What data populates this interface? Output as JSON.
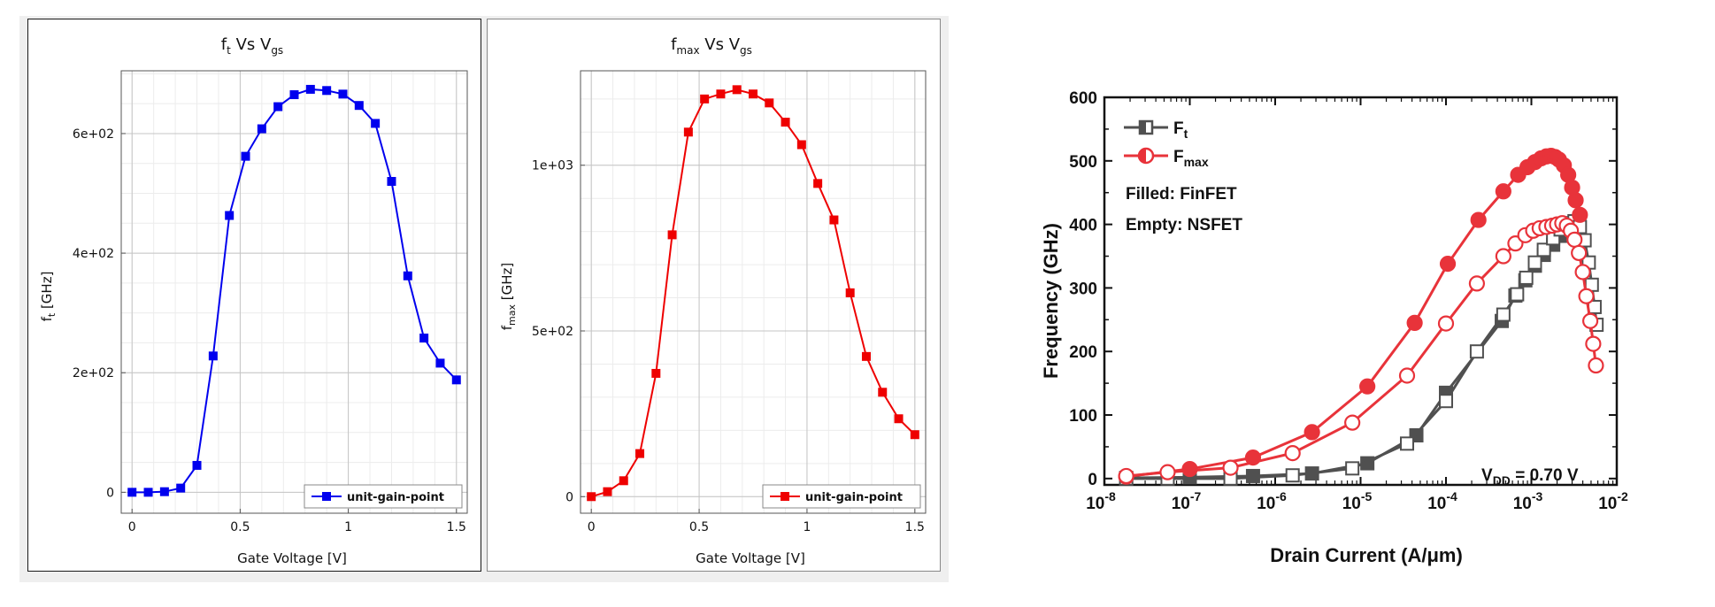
{
  "chart_data": [
    {
      "type": "line",
      "title": "f",
      "title_sub": "t",
      "title_rest": " Vs V",
      "title_sub2": "gs",
      "xlabel": "Gate Voltage [V]",
      "ylabel": "f",
      "ylabel_sub": "t",
      "ylabel_rest": " [GHz]",
      "xlim": [
        -0.05,
        1.55
      ],
      "ylim": [
        -35,
        705
      ],
      "x_ticks": [
        0,
        0.5,
        1,
        1.5
      ],
      "x_tick_labels": [
        "0",
        "0.5",
        "1",
        "1.5"
      ],
      "y_ticks": [
        0,
        200,
        400,
        600
      ],
      "y_tick_labels": [
        "0",
        "2e+02",
        "4e+02",
        "6e+02"
      ],
      "grid": true,
      "legend_position": "bottom-right",
      "series": [
        {
          "name": "unit-gain-point",
          "color": "#0000ee",
          "marker": "square",
          "x": [
            0,
            0.075,
            0.15,
            0.225,
            0.3,
            0.375,
            0.45,
            0.525,
            0.6,
            0.675,
            0.75,
            0.825,
            0.9,
            0.975,
            1.05,
            1.125,
            1.2,
            1.275,
            1.35,
            1.425,
            1.5
          ],
          "y": [
            0,
            0,
            1,
            7,
            45,
            228,
            463,
            562,
            608,
            645,
            665,
            674,
            672,
            666,
            647,
            617,
            520,
            362,
            258,
            216,
            188
          ]
        }
      ]
    },
    {
      "type": "line",
      "title": "f",
      "title_sub": "max",
      "title_rest": " Vs V",
      "title_sub2": "gs",
      "xlabel": "Gate Voltage [V]",
      "ylabel": "f",
      "ylabel_sub": "max",
      "ylabel_rest": " [GHz]",
      "xlim": [
        -0.05,
        1.55
      ],
      "ylim": [
        -50,
        1285
      ],
      "x_ticks": [
        0,
        0.5,
        1,
        1.5
      ],
      "x_tick_labels": [
        "0",
        "0.5",
        "1",
        "1.5"
      ],
      "y_ticks": [
        0,
        500,
        1000
      ],
      "y_tick_labels": [
        "0",
        "5e+02",
        "1e+03"
      ],
      "grid": true,
      "legend_position": "bottom-right",
      "series": [
        {
          "name": "unit-gain-point",
          "color": "#ee0000",
          "marker": "square",
          "x": [
            0,
            0.075,
            0.15,
            0.225,
            0.3,
            0.375,
            0.45,
            0.525,
            0.6,
            0.675,
            0.75,
            0.825,
            0.9,
            0.975,
            1.05,
            1.125,
            1.2,
            1.275,
            1.35,
            1.425,
            1.5
          ],
          "y": [
            0,
            15,
            48,
            130,
            372,
            790,
            1100,
            1200,
            1215,
            1228,
            1215,
            1188,
            1130,
            1062,
            945,
            835,
            615,
            423,
            315,
            235,
            187
          ]
        }
      ]
    },
    {
      "type": "line",
      "title": "",
      "xlabel": "Drain Current (A/μm)",
      "ylabel": "Frequency (GHz)",
      "x_scale": "log",
      "xlim": [
        1e-08,
        0.01
      ],
      "ylim": [
        -10,
        600
      ],
      "x_ticks": [
        1e-08,
        1e-07,
        1e-06,
        1e-05,
        0.0001,
        0.001,
        0.01
      ],
      "x_tick_base": [
        "10",
        "10",
        "10",
        "10",
        "10",
        "10",
        "10"
      ],
      "x_tick_exp": [
        "-8",
        "-7",
        "-6",
        "-5",
        "-4",
        "-3",
        "-2"
      ],
      "y_ticks": [
        0,
        100,
        200,
        300,
        400,
        500,
        600
      ],
      "y_tick_labels": [
        "0",
        "100",
        "200",
        "300",
        "400",
        "500",
        "600"
      ],
      "grid": false,
      "legend_position": "top-left",
      "legend": [
        {
          "label": "F",
          "sub": "t",
          "color": "#505050"
        },
        {
          "label": "F",
          "sub": "max",
          "color": "#e8333a"
        }
      ],
      "annotations": {
        "filled": "Filled: FinFET",
        "empty": "Empty: NSFET",
        "vdd": "V",
        "vdd_sub": "DD",
        "vdd_rest": " = 0.70 V"
      },
      "series": [
        {
          "name": "Ft FinFET",
          "color": "#505050",
          "marker": "square",
          "filled": true,
          "x": [
            1.8e-08,
            1e-07,
            5.5e-07,
            2.7e-06,
            1.2e-05,
            4.5e-05,
            0.0001,
            0.00045,
            0.00065,
            0.00085,
            0.0011,
            0.0014,
            0.0018,
            0.0023,
            0.0029,
            0.0035
          ],
          "y": [
            1,
            2,
            4,
            8,
            24,
            68,
            135,
            248,
            288,
            312,
            335,
            352,
            368,
            382,
            394,
            400
          ]
        },
        {
          "name": "Ft NSFET",
          "color": "#505050",
          "marker": "square",
          "filled": false,
          "x": [
            1.8e-08,
            5.5e-08,
            3e-07,
            1.6e-06,
            8e-06,
            3.5e-05,
            0.0001,
            0.00023,
            0.00047,
            0.00068,
            0.00087,
            0.0011,
            0.0014,
            0.0018,
            0.0022,
            0.0027,
            0.0032,
            0.0037,
            0.0042,
            0.0047,
            0.0051,
            0.0055,
            0.0058
          ],
          "y": [
            0,
            0,
            0,
            5,
            16,
            55,
            122,
            200,
            258,
            290,
            316,
            340,
            360,
            378,
            392,
            402,
            405,
            396,
            375,
            340,
            305,
            270,
            242
          ]
        },
        {
          "name": "Fmax FinFET",
          "color": "#e8333a",
          "marker": "circle",
          "filled": true,
          "x": [
            1.8e-08,
            1e-07,
            5.5e-07,
            2.7e-06,
            1.2e-05,
            4.3e-05,
            0.000105,
            0.00024,
            0.00047,
            0.0007,
            0.0009,
            0.0011,
            0.0013,
            0.0015,
            0.0017,
            0.0019,
            0.0021,
            0.0024,
            0.0027,
            0.003,
            0.0033,
            0.0037
          ],
          "y": [
            3,
            15,
            33,
            73,
            145,
            245,
            338,
            407,
            452,
            478,
            490,
            498,
            504,
            507,
            508,
            506,
            502,
            493,
            478,
            458,
            438,
            415
          ]
        },
        {
          "name": "Fmax NSFET",
          "color": "#e8333a",
          "marker": "circle",
          "filled": false,
          "x": [
            1.8e-08,
            5.5e-08,
            3e-07,
            1.6e-06,
            8e-06,
            3.5e-05,
            0.0001,
            0.00023,
            0.00047,
            0.00065,
            0.00085,
            0.00105,
            0.00125,
            0.0015,
            0.00175,
            0.002,
            0.0023,
            0.0026,
            0.0029,
            0.0032,
            0.0036,
            0.004,
            0.0044,
            0.0049,
            0.0053,
            0.0057
          ],
          "y": [
            4,
            10,
            17,
            40,
            88,
            162,
            244,
            307,
            350,
            370,
            383,
            390,
            394,
            396,
            398,
            400,
            402,
            398,
            390,
            376,
            355,
            325,
            287,
            248,
            212,
            178
          ]
        }
      ]
    }
  ]
}
